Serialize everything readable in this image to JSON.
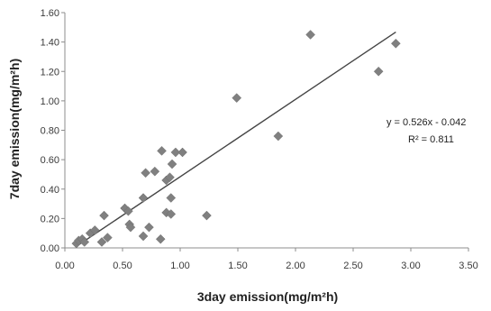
{
  "chart_data": {
    "type": "scatter",
    "xlabel": "3day emission(mg/m²h)",
    "ylabel": "7day emission(mg/m²h)",
    "xlim": [
      0,
      3.5
    ],
    "ylim": [
      0,
      1.6
    ],
    "x_ticks": [
      "0.00",
      "0.50",
      "1.00",
      "1.50",
      "2.00",
      "2.50",
      "3.00",
      "3.50"
    ],
    "y_ticks": [
      "0.00",
      "0.20",
      "0.40",
      "0.60",
      "0.80",
      "1.00",
      "1.20",
      "1.40",
      "1.60"
    ],
    "grid": false,
    "legend": "none",
    "marker": "diamond",
    "marker_color": "#808080",
    "points": [
      {
        "x": 0.1,
        "y": 0.03
      },
      {
        "x": 0.12,
        "y": 0.05
      },
      {
        "x": 0.15,
        "y": 0.06
      },
      {
        "x": 0.17,
        "y": 0.04
      },
      {
        "x": 0.22,
        "y": 0.1
      },
      {
        "x": 0.26,
        "y": 0.12
      },
      {
        "x": 0.32,
        "y": 0.04
      },
      {
        "x": 0.34,
        "y": 0.22
      },
      {
        "x": 0.37,
        "y": 0.07
      },
      {
        "x": 0.52,
        "y": 0.27
      },
      {
        "x": 0.55,
        "y": 0.25
      },
      {
        "x": 0.56,
        "y": 0.16
      },
      {
        "x": 0.57,
        "y": 0.14
      },
      {
        "x": 0.68,
        "y": 0.08
      },
      {
        "x": 0.68,
        "y": 0.34
      },
      {
        "x": 0.7,
        "y": 0.51
      },
      {
        "x": 0.73,
        "y": 0.14
      },
      {
        "x": 0.78,
        "y": 0.52
      },
      {
        "x": 0.83,
        "y": 0.06
      },
      {
        "x": 0.84,
        "y": 0.66
      },
      {
        "x": 0.88,
        "y": 0.24
      },
      {
        "x": 0.88,
        "y": 0.46
      },
      {
        "x": 0.91,
        "y": 0.48
      },
      {
        "x": 0.92,
        "y": 0.34
      },
      {
        "x": 0.92,
        "y": 0.23
      },
      {
        "x": 0.93,
        "y": 0.57
      },
      {
        "x": 0.96,
        "y": 0.65
      },
      {
        "x": 1.02,
        "y": 0.65
      },
      {
        "x": 1.23,
        "y": 0.22
      },
      {
        "x": 1.49,
        "y": 1.02
      },
      {
        "x": 1.85,
        "y": 0.76
      },
      {
        "x": 2.13,
        "y": 1.45
      },
      {
        "x": 2.72,
        "y": 1.2
      },
      {
        "x": 2.87,
        "y": 1.39
      }
    ],
    "trendline": {
      "slope": 0.526,
      "intercept": -0.042,
      "x_range": [
        0.1,
        2.87
      ],
      "color": "#444444"
    },
    "annotations": [
      "y = 0.526x - 0.042",
      "R² = 0.811"
    ]
  }
}
